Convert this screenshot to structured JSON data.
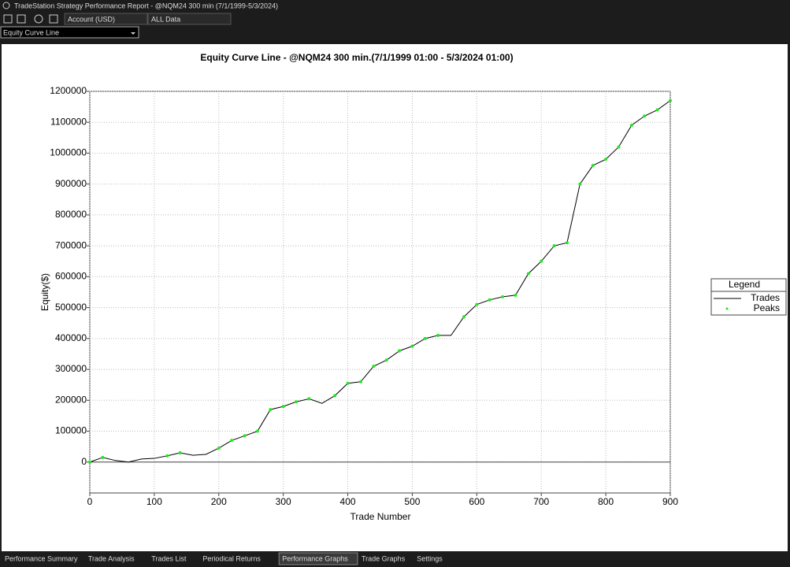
{
  "window": {
    "title": "TradeStation Strategy Performance Report - @NQM24 300 min (7/1/1999-5/3/2024)"
  },
  "toolbar": {
    "account": "Account (USD)",
    "range": "ALL Data",
    "graph": "Equity Curve Line"
  },
  "tabs": {
    "items": [
      "Performance Summary",
      "Trade Analysis",
      "Trades List",
      "Periodical Returns",
      "Performance Graphs",
      "Trade Graphs",
      "Settings"
    ],
    "active": 4
  },
  "chart_data": {
    "type": "line",
    "title": "Equity Curve Line - @NQM24 300 min.(7/1/1999 01:00 - 5/3/2024 01:00)",
    "x_label": "Trade Number",
    "y_label": "Equity($)",
    "legend_title": "Legend",
    "legend": "right",
    "grid": true,
    "x": [
      0,
      20,
      40,
      60,
      80,
      100,
      120,
      140,
      160,
      180,
      200,
      220,
      240,
      260,
      280,
      300,
      320,
      340,
      360,
      380,
      400,
      420,
      440,
      460,
      480,
      500,
      520,
      540,
      560,
      580,
      600,
      620,
      640,
      660,
      680,
      700,
      720,
      740,
      760,
      780,
      800,
      820,
      840,
      860,
      880,
      900
    ],
    "series": [
      {
        "name": "Trades",
        "color": "#000000",
        "kind": "line",
        "values": [
          0,
          15000,
          5000,
          0,
          10000,
          12000,
          20000,
          30000,
          22000,
          25000,
          45000,
          70000,
          85000,
          100000,
          170000,
          180000,
          195000,
          205000,
          190000,
          215000,
          255000,
          260000,
          310000,
          330000,
          360000,
          375000,
          400000,
          410000,
          410000,
          470000,
          510000,
          525000,
          535000,
          540000,
          610000,
          650000,
          700000,
          710000,
          900000,
          960000,
          980000,
          1020000,
          1090000,
          1120000,
          1140000,
          1170000
        ]
      },
      {
        "name": "Peaks",
        "color": "#22e622",
        "kind": "points",
        "values": [
          0,
          15000,
          null,
          null,
          null,
          null,
          20000,
          30000,
          null,
          null,
          45000,
          70000,
          85000,
          100000,
          170000,
          180000,
          195000,
          205000,
          null,
          215000,
          255000,
          260000,
          310000,
          330000,
          360000,
          375000,
          400000,
          410000,
          null,
          470000,
          510000,
          525000,
          535000,
          540000,
          610000,
          650000,
          700000,
          710000,
          900000,
          960000,
          980000,
          1020000,
          1090000,
          1120000,
          1140000,
          1170000
        ]
      }
    ],
    "xlim": [
      0,
      900
    ],
    "xticks": [
      0,
      100,
      200,
      300,
      400,
      500,
      600,
      700,
      800,
      900
    ],
    "ylim": [
      -100000,
      1200000
    ],
    "yticks": [
      0,
      100000,
      200000,
      300000,
      400000,
      500000,
      600000,
      700000,
      800000,
      900000,
      1000000,
      1100000,
      1200000
    ]
  }
}
